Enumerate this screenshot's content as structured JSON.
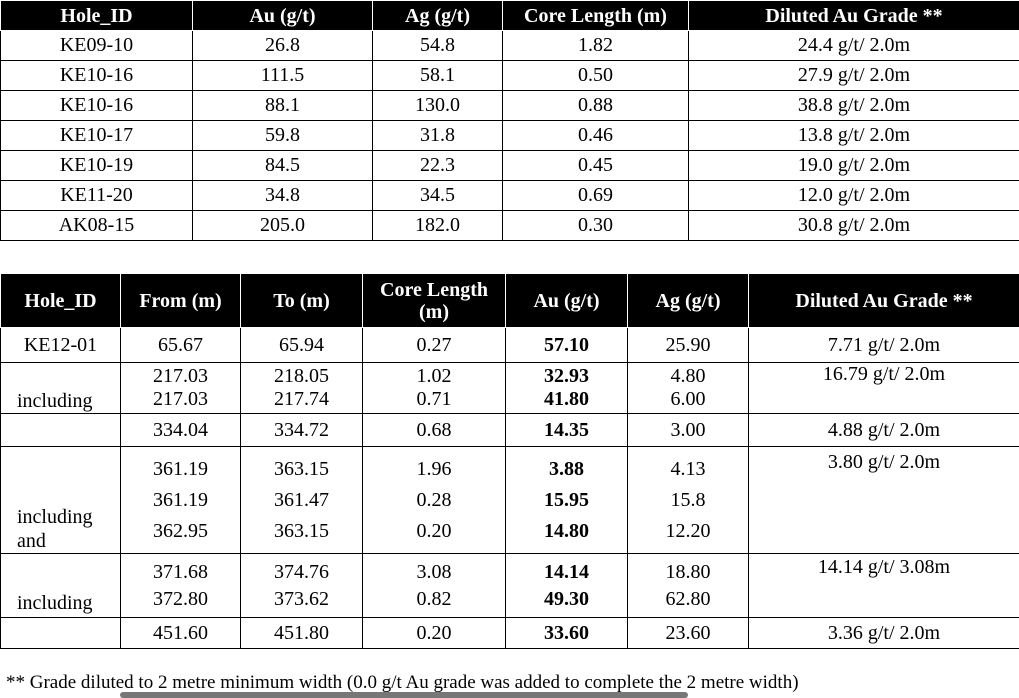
{
  "table1": {
    "header": [
      "Hole_ID",
      "Au (g/t)",
      "Ag (g/t)",
      "Core Length (m)",
      "Diluted Au Grade **"
    ],
    "rows": [
      [
        "KE09-10",
        "26.8",
        "54.8",
        "1.82",
        "24.4 g/t/ 2.0m"
      ],
      [
        "KE10-16",
        "111.5",
        "58.1",
        "0.50",
        "27.9 g/t/ 2.0m"
      ],
      [
        "KE10-16",
        "88.1",
        "130.0",
        "0.88",
        "38.8 g/t/ 2.0m"
      ],
      [
        "KE10-17",
        "59.8",
        "31.8",
        "0.46",
        "13.8 g/t/ 2.0m"
      ],
      [
        "KE10-19",
        "84.5",
        "22.3",
        "0.45",
        "19.0 g/t/ 2.0m"
      ],
      [
        "KE11-20",
        "34.8",
        "34.5",
        "0.69",
        "12.0 g/t/ 2.0m"
      ],
      [
        "AK08-15",
        "205.0",
        "182.0",
        "0.30",
        "30.8 g/t/ 2.0m"
      ]
    ]
  },
  "table2": {
    "header": [
      "Hole_ID",
      "From (m)",
      "To (m)",
      "Core Length (m)",
      "Au (g/t)",
      "Ag (g/t)",
      "Diluted Au Grade **"
    ],
    "rows": [
      [
        [
          "KE12-01"
        ],
        [
          "65.67"
        ],
        [
          "65.94"
        ],
        [
          "0.27"
        ],
        [
          "57.10"
        ],
        [
          "25.90"
        ],
        [
          "7.71 g/t/ 2.0m"
        ]
      ],
      [
        [
          "including"
        ],
        [
          "217.03",
          "217.03"
        ],
        [
          "218.05",
          "217.74"
        ],
        [
          "1.02",
          "0.71"
        ],
        [
          "32.93",
          "41.80"
        ],
        [
          "4.80",
          "6.00"
        ],
        [
          "16.79 g/t/ 2.0m"
        ]
      ],
      [
        [],
        [
          "334.04"
        ],
        [
          "334.72"
        ],
        [
          "0.68"
        ],
        [
          "14.35"
        ],
        [
          "3.00"
        ],
        [
          "4.88 g/t/ 2.0m"
        ]
      ],
      [
        [
          "including",
          "and"
        ],
        [
          "361.19",
          "361.19",
          "362.95"
        ],
        [
          "363.15",
          "361.47",
          "363.15"
        ],
        [
          "1.96",
          "0.28",
          "0.20"
        ],
        [
          "3.88",
          "15.95",
          "14.80"
        ],
        [
          "4.13",
          "15.8",
          "12.20"
        ],
        [
          "3.80 g/t/ 2.0m"
        ]
      ],
      [
        [
          "including"
        ],
        [
          "371.68",
          "372.80"
        ],
        [
          "374.76",
          "373.62"
        ],
        [
          "3.08",
          "0.82"
        ],
        [
          "14.14",
          "49.30"
        ],
        [
          "18.80",
          "62.80"
        ],
        [
          "14.14 g/t/ 3.08m"
        ]
      ],
      [
        [],
        [
          "451.60"
        ],
        [
          "451.80"
        ],
        [
          "0.20"
        ],
        [
          "33.60"
        ],
        [
          "23.60"
        ],
        [
          "3.36 g/t/ 2.0m"
        ]
      ]
    ]
  },
  "footnote": "** Grade diluted to 2 metre minimum width (0.0 g/t Au grade was added to complete the 2 metre width)"
}
